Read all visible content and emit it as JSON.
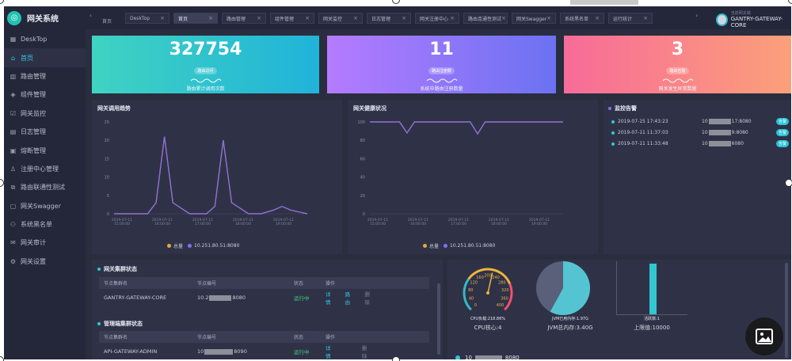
{
  "app": {
    "title": "网关系统"
  },
  "sidebar": {
    "items": [
      {
        "label": "DeskTop",
        "icon": "grid-icon",
        "glyph": "▦"
      },
      {
        "label": "首页",
        "icon": "home-icon",
        "glyph": "⌂",
        "active": true
      },
      {
        "label": "路由管理",
        "icon": "route-icon",
        "glyph": "▥"
      },
      {
        "label": "组件管理",
        "icon": "component-icon",
        "glyph": "◈"
      },
      {
        "label": "网关监控",
        "icon": "monitor-icon",
        "glyph": "☑"
      },
      {
        "label": "日志管理",
        "icon": "log-icon",
        "glyph": "▤"
      },
      {
        "label": "熔断管理",
        "icon": "fuse-icon",
        "glyph": "▣"
      },
      {
        "label": "注册中心管理",
        "icon": "user-icon",
        "glyph": "♙"
      },
      {
        "label": "路由联通性测试",
        "icon": "link-icon",
        "glyph": "⧉"
      },
      {
        "label": "网关Swagger",
        "icon": "document-icon",
        "glyph": "▢"
      },
      {
        "label": "系统黑名单",
        "icon": "blacklist-icon",
        "glyph": "⚇"
      },
      {
        "label": "网关审计",
        "icon": "audit-icon",
        "glyph": "✉"
      },
      {
        "label": "网关设置",
        "icon": "gear-icon",
        "glyph": "⚙"
      }
    ]
  },
  "tabbar": {
    "home": "首页",
    "tabs": [
      {
        "label": "DeskTop"
      },
      {
        "label": "首页",
        "active": true
      },
      {
        "label": "路由管理"
      },
      {
        "label": "组件管理"
      },
      {
        "label": "网关监控"
      },
      {
        "label": "日志管理"
      },
      {
        "label": "网关注册中心"
      },
      {
        "label": "路由连通性测试"
      },
      {
        "label": "网关Swagger"
      },
      {
        "label": "系统黑名单"
      },
      {
        "label": "运行统计"
      }
    ],
    "close_glyph": "×",
    "left_arrow": "‹",
    "right_arrow": "›"
  },
  "user": {
    "subtitle": "当前网关端",
    "name": "GANTRY-GATEWAY-CORE"
  },
  "stats": [
    {
      "value": "327754",
      "badge": "路由访问",
      "desc": "路由累计调用次数"
    },
    {
      "value": "11",
      "badge": "路由注册数",
      "desc": "系统中路由注册数量"
    },
    {
      "value": "3",
      "badge": "路由告警",
      "desc": "网关发生异常数量"
    }
  ],
  "trend_chart": {
    "title": "网关调用趋势",
    "chart_data": {
      "type": "line",
      "yticks": [
        "25",
        "20",
        "15",
        "10",
        "5",
        "0"
      ],
      "ylim": [
        0,
        25
      ],
      "xticks": [
        "2019-07-11\n15:00:00",
        "2019-07-11\n16:00:00",
        "2019-07-11\n17:00:00",
        "2019-07-11\n18:00:00",
        "2019-07-11\n19:00:00"
      ],
      "x": [
        0,
        0.4,
        0.8,
        1.0,
        1.2,
        1.4,
        1.8,
        2.2,
        2.4,
        2.6,
        2.8,
        3.2,
        3.5,
        3.8,
        4.0,
        4.2,
        4.6
      ],
      "series": [
        {
          "name": "总量",
          "color": "#e8a73a",
          "values": [
            0,
            0,
            0,
            3,
            21,
            3,
            0,
            0,
            2,
            20,
            3,
            0,
            0,
            1,
            2,
            1,
            0
          ]
        },
        {
          "name": "10.251.80.51:8080",
          "color": "#8a6cf0",
          "values": [
            0,
            0,
            0,
            3,
            21,
            3,
            0,
            0,
            2,
            20,
            3,
            0,
            0,
            1,
            2,
            1,
            0
          ]
        }
      ]
    }
  },
  "health_chart": {
    "title": "网关健康状况",
    "chart_data": {
      "type": "line",
      "yticks": [
        "100",
        "80",
        "60",
        "40",
        "20",
        "0"
      ],
      "ylim": [
        0,
        100
      ],
      "xticks": [
        "2019-07-11\n15:00:00",
        "2019-07-11\n16:00:00",
        "2019-07-11\n17:00:00",
        "2019-07-11\n18:00:00",
        "2019-07-11\n19:00:00"
      ],
      "x": [
        0,
        0.6,
        0.8,
        1.0,
        1.2,
        1.5,
        2.5,
        2.7,
        2.9,
        3.1,
        3.4,
        4.0,
        5.2
      ],
      "series": [
        {
          "name": "总量",
          "color": "#e8a73a",
          "values": [
            100,
            100,
            100,
            88,
            100,
            100,
            100,
            100,
            87,
            100,
            100,
            100,
            100
          ]
        },
        {
          "name": "10.251.80.51:8080",
          "color": "#8a6cf0",
          "values": [
            100,
            100,
            100,
            88,
            100,
            100,
            100,
            100,
            87,
            100,
            100,
            100,
            100
          ]
        }
      ]
    }
  },
  "alarms": {
    "title": "监控告警",
    "rows": [
      {
        "time": "2019-07-15 17:43:23",
        "addr_prefix": "10",
        "addr_suffix": "17:8080",
        "tag": "告警"
      },
      {
        "time": "2019-07-11 11:37:03",
        "addr_prefix": "10",
        "addr_suffix": "9:8080",
        "tag": "告警"
      },
      {
        "time": "2019-07-11 11:33:48",
        "addr_prefix": "10",
        "addr_suffix": "6080",
        "tag": "告警"
      }
    ]
  },
  "cluster": {
    "title": "网关集群状态",
    "headers": [
      "节点集群名",
      "节点编号",
      "状态",
      "操作"
    ],
    "rows": [
      {
        "name": "GANTRY-GATEWAY-CORE",
        "node_prefix": "10.2",
        "node_suffix": "8080",
        "status": "运行中",
        "op1": "详情",
        "op2": "路由",
        "op3": "删除"
      }
    ]
  },
  "mgmt": {
    "title": "管理端集群状态",
    "headers": [
      "节点集群名",
      "节点编号",
      "状态",
      "操作"
    ],
    "rows": [
      {
        "name": "API-GATEWAY-ADMIN",
        "node_prefix": "10",
        "node_suffix": "8090",
        "status": "运行中",
        "op1": "详情",
        "op3": "删除"
      }
    ]
  },
  "gauges": {
    "cpu": {
      "caption": "CPU负载:218.86%",
      "label": "CPU核心:4",
      "ticks": [
        "120",
        "160",
        "200",
        "240",
        "280",
        "320",
        "360",
        "400",
        "80",
        "40",
        "0"
      ]
    },
    "jvm": {
      "caption": "JVM已用内存:1.97G",
      "label": "JVM总内存:3.40G",
      "used_fraction": 0.58
    },
    "thread": {
      "caption": "活跃数:1",
      "label": "上限值:10000"
    }
  },
  "bottom": {
    "prefix": "10",
    "suffix": "8080"
  },
  "colors": {
    "accent": "#2fc8e8",
    "purple": "#8a6cf0",
    "orange": "#e8a73a"
  }
}
